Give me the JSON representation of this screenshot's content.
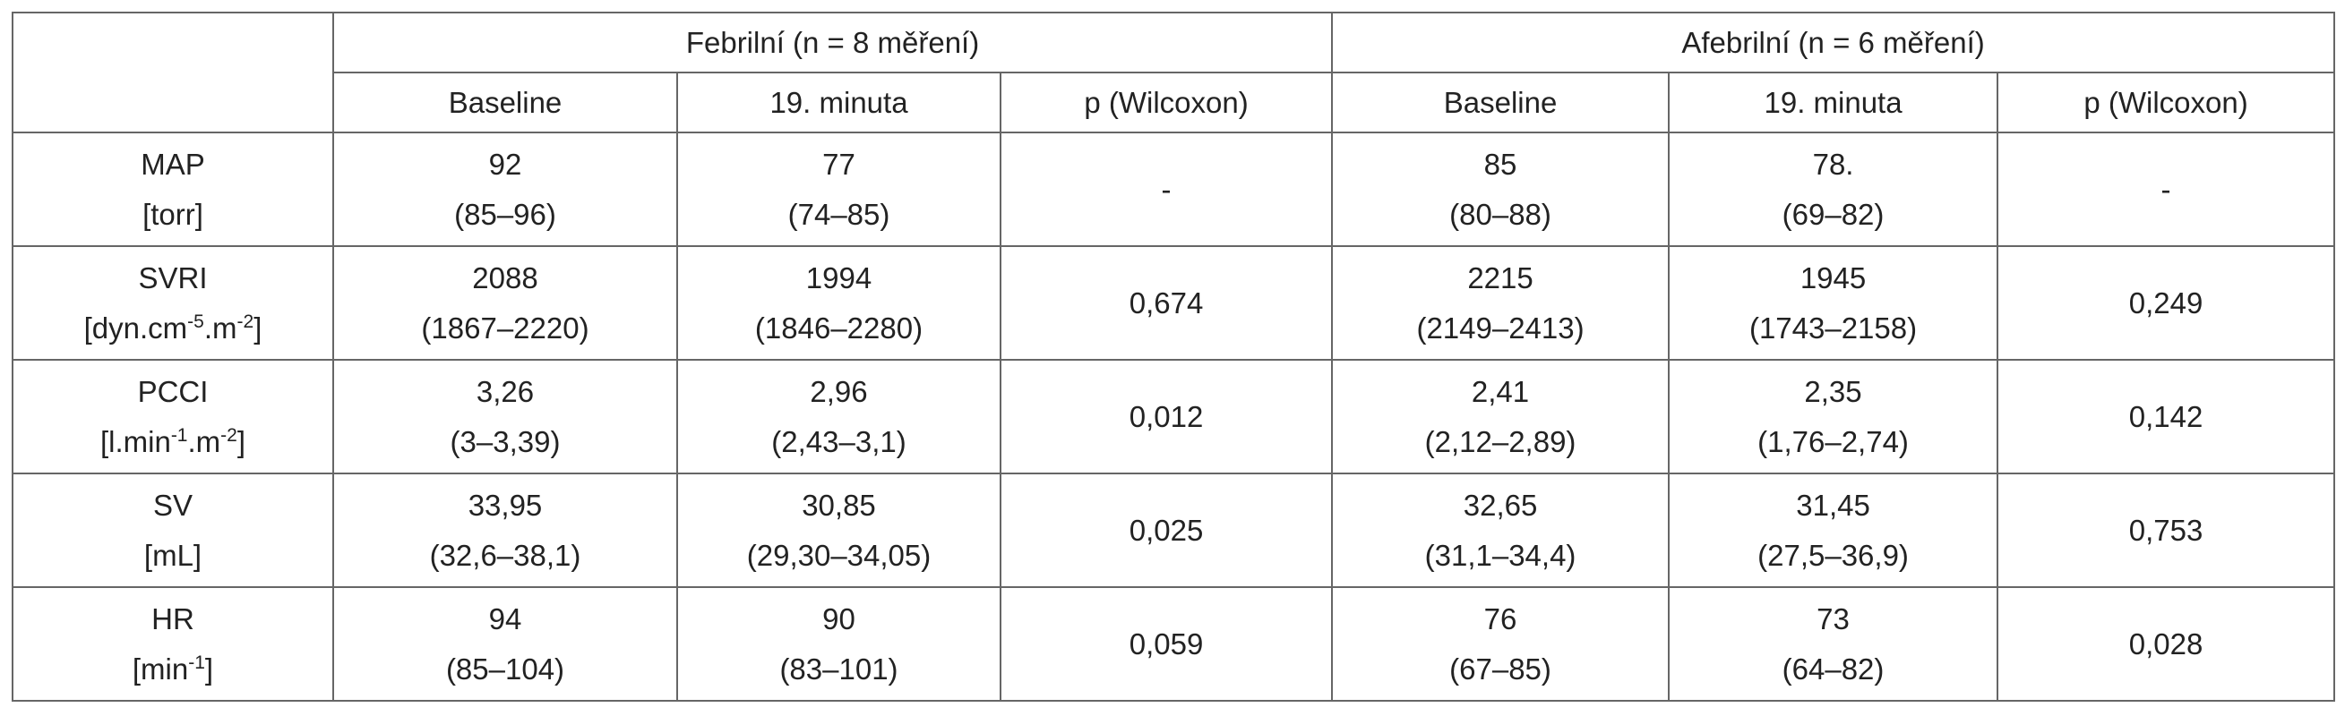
{
  "table": {
    "groups": [
      "Febrilní (n = 8 měření)",
      "Afebrilní (n = 6 měření)"
    ],
    "subheaders": [
      "Baseline",
      "19. minuta",
      "p (Wilcoxon)",
      "Baseline",
      "19. minuta",
      "p (Wilcoxon)"
    ],
    "rows": [
      {
        "name": "MAP",
        "unit": [
          "[torr]"
        ],
        "cells": [
          [
            "92",
            "(85–96)"
          ],
          [
            "77",
            "(74–85)"
          ],
          [
            "-"
          ],
          [
            "85",
            "(80–88)"
          ],
          [
            "78.",
            "(69–82)"
          ],
          [
            "-"
          ]
        ]
      },
      {
        "name": "SVRI",
        "unit": [
          "[dyn.cm",
          "-5",
          ".m",
          "-2",
          "]"
        ],
        "cells": [
          [
            "2088",
            "(1867–2220)"
          ],
          [
            "1994",
            "(1846–2280)"
          ],
          [
            "0,674"
          ],
          [
            "2215",
            "(2149–2413)"
          ],
          [
            "1945",
            "(1743–2158)"
          ],
          [
            "0,249"
          ]
        ]
      },
      {
        "name": "PCCI",
        "unit": [
          "[l.min",
          "-1",
          ".m",
          "-2",
          "]"
        ],
        "cells": [
          [
            "3,26",
            "(3–3,39)"
          ],
          [
            "2,96",
            "(2,43–3,1)"
          ],
          [
            "0,012"
          ],
          [
            "2,41",
            "(2,12–2,89)"
          ],
          [
            "2,35",
            "(1,76–2,74)"
          ],
          [
            "0,142"
          ]
        ]
      },
      {
        "name": "SV",
        "unit": [
          "[mL]"
        ],
        "cells": [
          [
            "33,95",
            "(32,6–38,1)"
          ],
          [
            "30,85",
            "(29,30–34,05)"
          ],
          [
            "0,025"
          ],
          [
            "32,65",
            "(31,1–34,4)"
          ],
          [
            "31,45",
            "(27,5–36,9)"
          ],
          [
            "0,753"
          ]
        ]
      },
      {
        "name": "HR",
        "unit": [
          "[min",
          "-1",
          "]"
        ],
        "cells": [
          [
            "94",
            "(85–104)"
          ],
          [
            "90",
            "(83–101)"
          ],
          [
            "0,059"
          ],
          [
            "76",
            "(67–85)"
          ],
          [
            "73",
            "(64–82)"
          ],
          [
            "0,028"
          ]
        ]
      }
    ]
  }
}
